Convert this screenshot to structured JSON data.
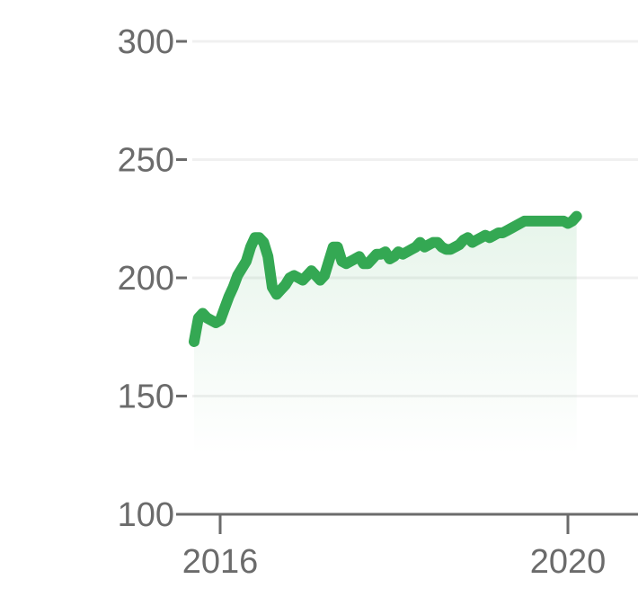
{
  "chart_data": {
    "type": "area",
    "title": "",
    "xlabel": "",
    "ylabel": "",
    "ylim": [
      100,
      300
    ],
    "yticks": [
      100,
      150,
      200,
      250,
      300
    ],
    "xticks": [
      {
        "label": "2016",
        "value": 2016.0
      },
      {
        "label": "2020",
        "value": 2020.0
      }
    ],
    "xlim": [
      2014.5,
      2020.8
    ],
    "grid": true,
    "legend": "none",
    "colors": {
      "line": "#34a853",
      "fill": "#34a853",
      "grid": "#f0f0f0",
      "axis": "#6b6b6b"
    },
    "series": [
      {
        "x": [
          2015.7,
          2015.75,
          2015.8,
          2015.85,
          2015.9,
          2015.95,
          2016.0,
          2016.05,
          2016.1,
          2016.15,
          2016.2,
          2016.25,
          2016.3,
          2016.35,
          2016.4,
          2016.45,
          2016.5,
          2016.55,
          2016.6,
          2016.65,
          2016.7,
          2016.75,
          2016.8,
          2016.85,
          2016.9,
          2016.95,
          2017.0,
          2017.05,
          2017.1,
          2017.15,
          2017.2,
          2017.25,
          2017.3,
          2017.35,
          2017.4,
          2017.45,
          2017.5,
          2017.55,
          2017.6,
          2017.65,
          2017.7,
          2017.75,
          2017.8,
          2017.85,
          2017.9,
          2017.95,
          2018.0,
          2018.05,
          2018.1,
          2018.15,
          2018.2,
          2018.25,
          2018.3,
          2018.35,
          2018.4,
          2018.45,
          2018.5,
          2018.55,
          2018.6,
          2018.65,
          2018.7,
          2018.75,
          2018.8,
          2018.85,
          2018.9,
          2018.95,
          2019.0,
          2019.05,
          2019.1,
          2019.15,
          2019.2,
          2019.25,
          2019.3,
          2019.35,
          2019.4,
          2019.45,
          2019.5,
          2019.55,
          2019.6,
          2019.65,
          2019.7,
          2019.75,
          2019.8,
          2019.85,
          2019.9,
          2019.95,
          2020.0,
          2020.05,
          2020.1
        ],
        "values": [
          173,
          183,
          185,
          183,
          182,
          181,
          182,
          187,
          192,
          196,
          201,
          204,
          207,
          213,
          217,
          217,
          215,
          209,
          196,
          193,
          195,
          197,
          200,
          201,
          200,
          199,
          201,
          203,
          201,
          199,
          201,
          207,
          213,
          213,
          207,
          206,
          207,
          208,
          209,
          206,
          206,
          208,
          210,
          210,
          211,
          208,
          209,
          211,
          210,
          211,
          212,
          213,
          215,
          213,
          214,
          215,
          215,
          213,
          212,
          212,
          213,
          214,
          216,
          217,
          215,
          216,
          217,
          218,
          217,
          218,
          219,
          219,
          220,
          221,
          222,
          223,
          224,
          224,
          224,
          224,
          224,
          224,
          224,
          224,
          224,
          224,
          223,
          224,
          226
        ]
      }
    ]
  }
}
